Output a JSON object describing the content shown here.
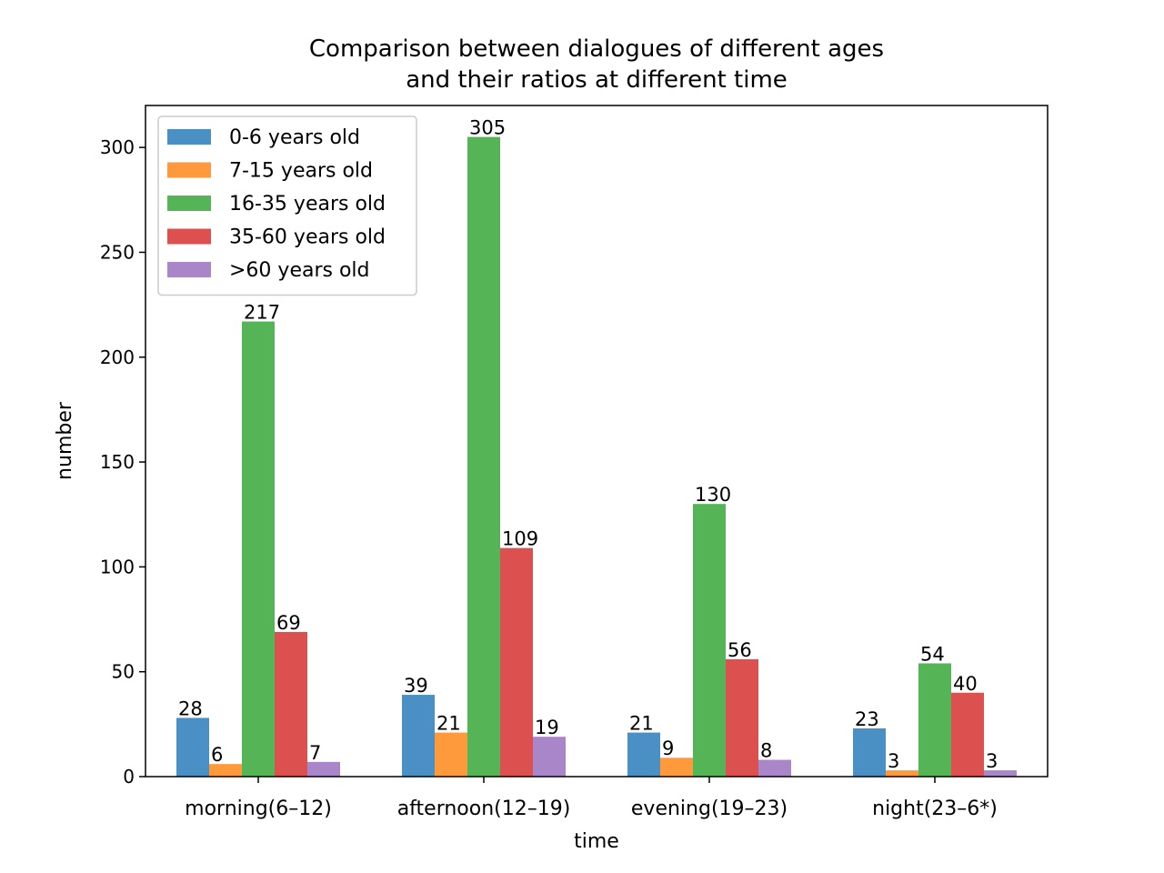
{
  "chart_data": {
    "type": "bar",
    "title_lines": [
      "Comparison between dialogues of different ages",
      "and their ratios at different time"
    ],
    "xlabel": "time",
    "ylabel": "number",
    "categories": [
      "morning(6–12)",
      "afternoon(12–19)",
      "evening(19–23)",
      "night(23–6*)"
    ],
    "series": [
      {
        "name": "0-6 years old",
        "color": "#4a90c4",
        "values": [
          28,
          39,
          21,
          23
        ]
      },
      {
        "name": "7-15 years old",
        "color": "#ff9a3c",
        "values": [
          6,
          21,
          9,
          3
        ]
      },
      {
        "name": "16-35 years old",
        "color": "#55b455",
        "values": [
          217,
          305,
          130,
          54
        ]
      },
      {
        "name": "35-60 years old",
        "color": "#dc5050",
        "values": [
          69,
          109,
          56,
          40
        ]
      },
      {
        "name": ">60 years old",
        "color": "#a886c8",
        "values": [
          7,
          19,
          8,
          3
        ]
      }
    ],
    "yticks": [
      0,
      50,
      100,
      150,
      200,
      250,
      300
    ],
    "ylim": [
      0,
      320
    ],
    "legend_position": "top-left",
    "grid": false,
    "bar_labels": true
  }
}
